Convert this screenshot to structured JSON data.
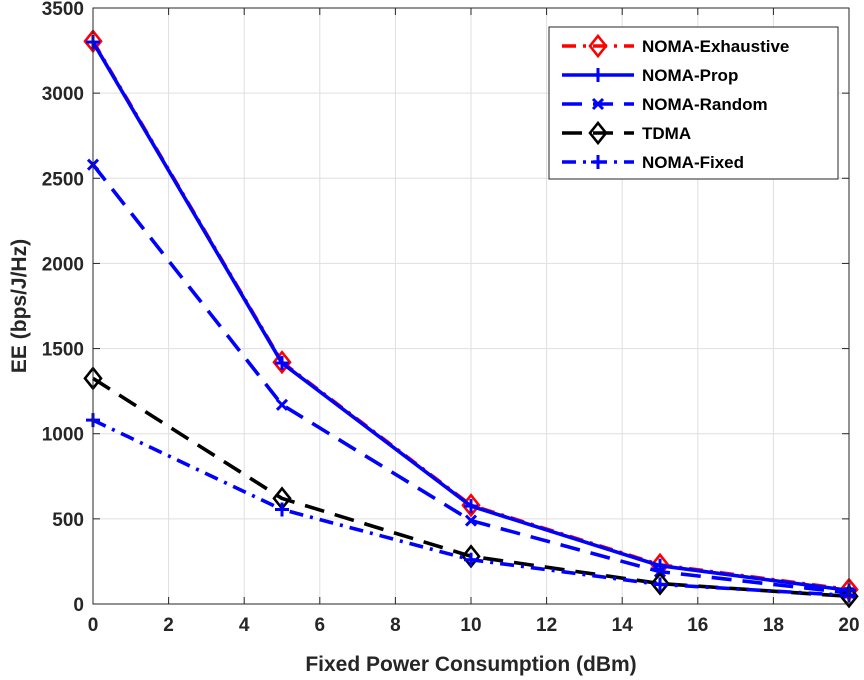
{
  "chart_data": {
    "type": "line",
    "title": "",
    "xlabel": "Fixed Power Consumption (dBm)",
    "ylabel": "EE (bps/J/Hz)",
    "xlim": [
      0,
      20
    ],
    "ylim": [
      0,
      3500
    ],
    "xticks": [
      "0",
      "2",
      "4",
      "6",
      "8",
      "10",
      "12",
      "14",
      "16",
      "18",
      "20"
    ],
    "yticks": [
      "0",
      "500",
      "1000",
      "1500",
      "2000",
      "2500",
      "3000",
      "3500"
    ],
    "grid": true,
    "legend_position": "top-right",
    "x": [
      0,
      5,
      10,
      15,
      20
    ],
    "series": [
      {
        "name": "NOMA-Exhaustive",
        "values": [
          3305,
          1420,
          580,
          230,
          85
        ],
        "color": "#ff0000",
        "line": "dashdot",
        "marker": "diamond"
      },
      {
        "name": "NOMA-Prop",
        "values": [
          3300,
          1415,
          575,
          225,
          80
        ],
        "color": "#0000ff",
        "line": "solid",
        "marker": "plus"
      },
      {
        "name": "NOMA-Random",
        "values": [
          2580,
          1170,
          490,
          190,
          65
        ],
        "color": "#0000ff",
        "line": "dashed",
        "marker": "x"
      },
      {
        "name": "TDMA",
        "values": [
          1325,
          620,
          280,
          120,
          45
        ],
        "color": "#000000",
        "line": "dashed",
        "marker": "diamond"
      },
      {
        "name": "NOMA-Fixed",
        "values": [
          1080,
          555,
          260,
          115,
          50
        ],
        "color": "#0000ff",
        "line": "dashdot",
        "marker": "plus"
      }
    ]
  }
}
